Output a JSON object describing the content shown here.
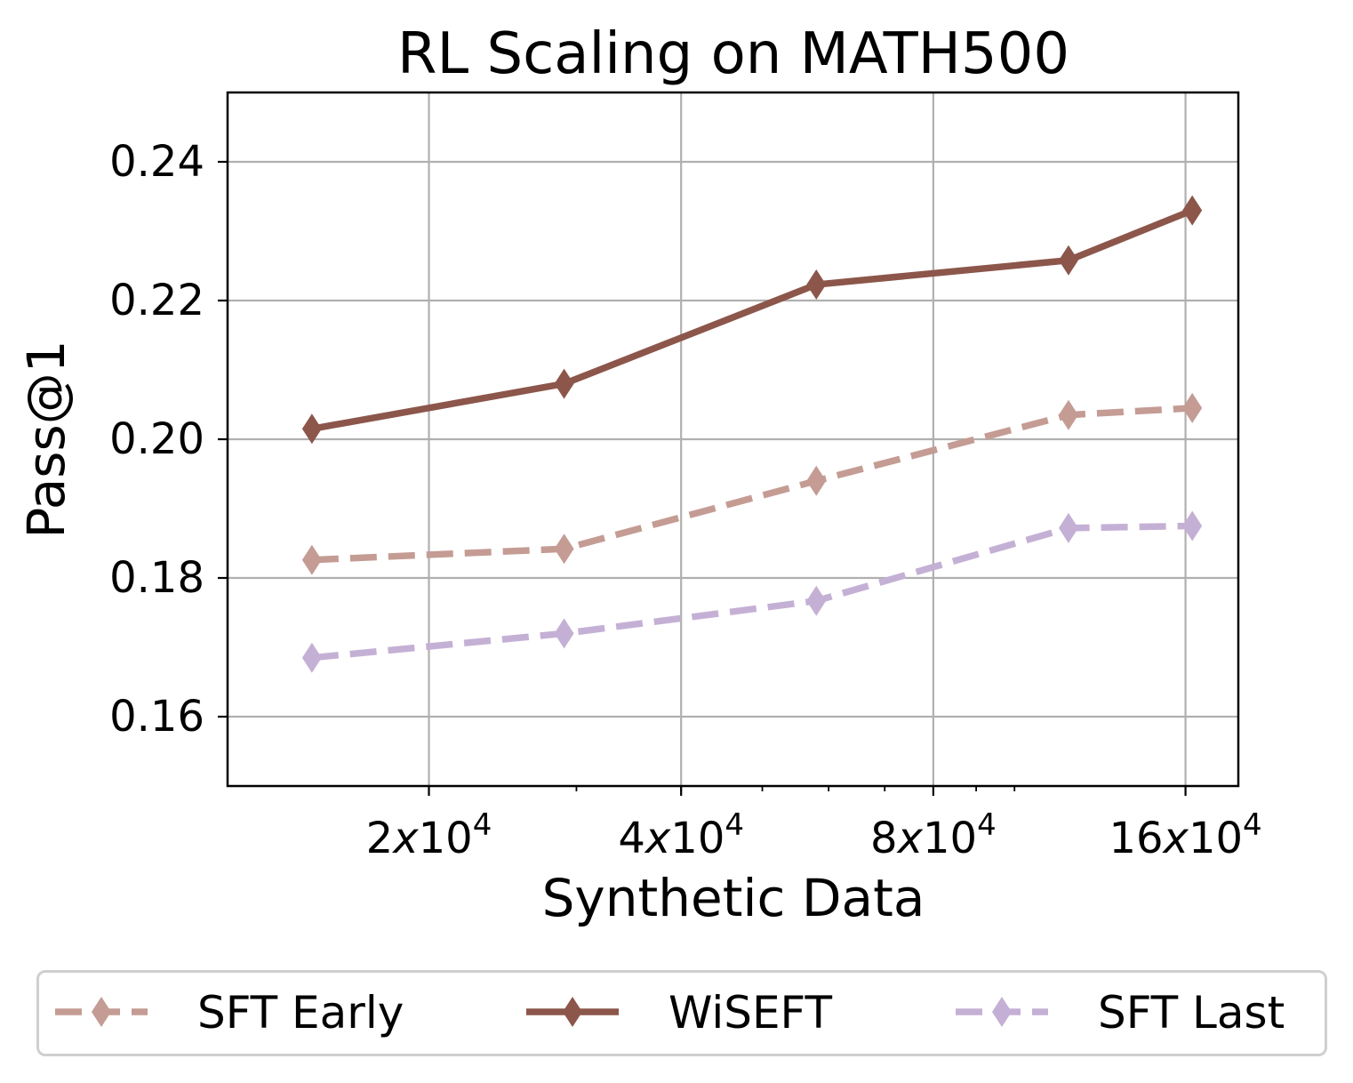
{
  "chart_data": {
    "type": "line",
    "title": "RL Scaling on MATH500",
    "xlabel": "Synthetic Data",
    "ylabel": "Pass@1",
    "x_scale": "log2",
    "x": [
      14500,
      29000,
      58000,
      116000,
      163000
    ],
    "xlim": [
      11500,
      185000
    ],
    "ylim": [
      0.15,
      0.25
    ],
    "grid": true,
    "x_ticks": [
      {
        "value": 20000,
        "mant": "2",
        "exp": "4"
      },
      {
        "value": 40000,
        "mant": "4",
        "exp": "4"
      },
      {
        "value": 80000,
        "mant": "8",
        "exp": "4"
      },
      {
        "value": 160000,
        "mant": "16",
        "exp": "4"
      }
    ],
    "y_ticks": [
      {
        "value": 0.16,
        "label": "0.16"
      },
      {
        "value": 0.18,
        "label": "0.18"
      },
      {
        "value": 0.2,
        "label": "0.20"
      },
      {
        "value": 0.22,
        "label": "0.22"
      },
      {
        "value": 0.24,
        "label": "0.24"
      }
    ],
    "series": [
      {
        "name": "SFT Early",
        "color": "#c49c94",
        "dashed": true,
        "values": [
          0.1826,
          0.1842,
          0.194,
          0.2035,
          0.2045
        ]
      },
      {
        "name": "WiSEFT",
        "color": "#8c564b",
        "dashed": false,
        "values": [
          0.2015,
          0.208,
          0.2223,
          0.2258,
          0.233
        ]
      },
      {
        "name": "SFT Last",
        "color": "#c5b0d5",
        "dashed": true,
        "values": [
          0.1685,
          0.172,
          0.1767,
          0.1872,
          0.1875
        ]
      }
    ],
    "legend_position": "bottom"
  }
}
